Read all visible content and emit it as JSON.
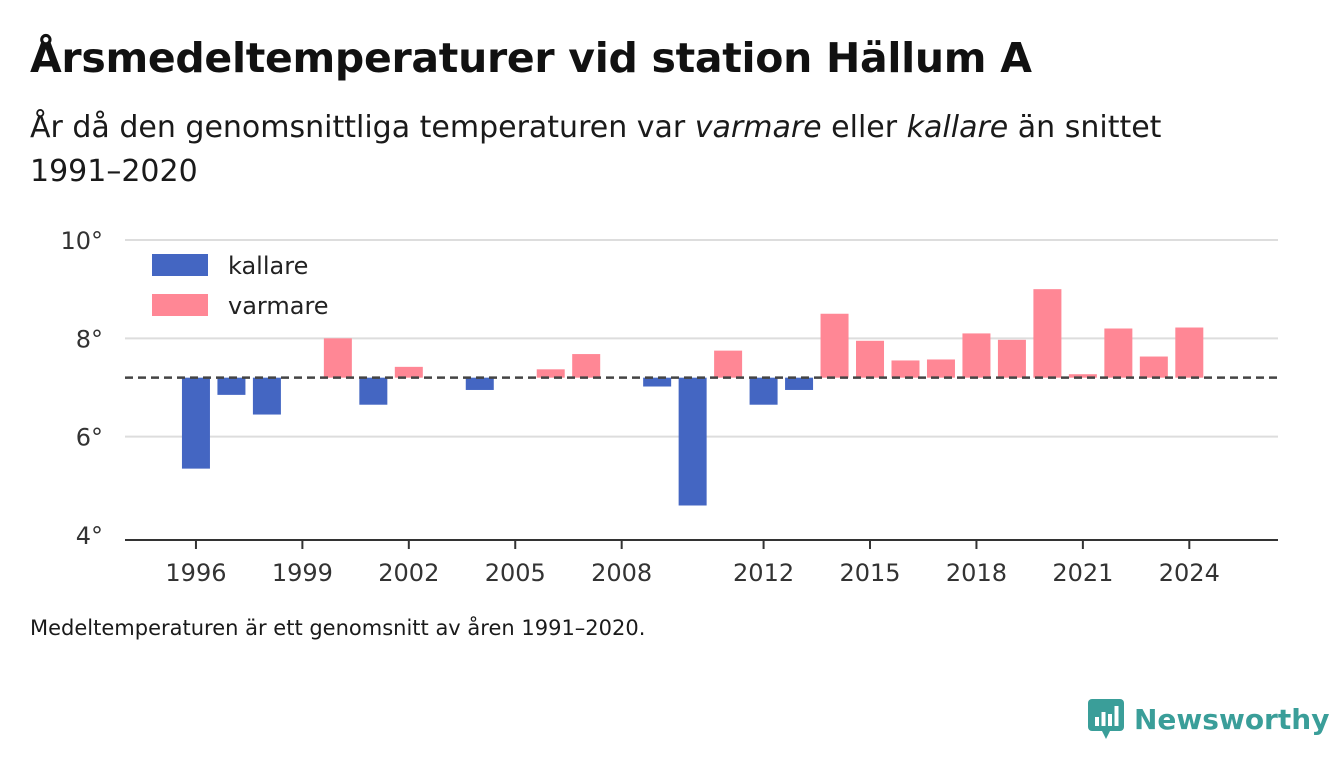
{
  "title": "Årsmedeltemperaturer vid station Hällum A",
  "subtitle": {
    "before": "År då den genomsnittliga temperaturen var ",
    "warm": "varmare",
    "middle": " eller ",
    "cold": "kallare",
    "after": " än snittet 1991–2020"
  },
  "note": "Medeltemperaturen är ett genomsnitt av åren 1991–2020.",
  "brand": {
    "name": "Newsworthy",
    "icon": "newsworthy-logo-icon",
    "color": "#3a9e99"
  },
  "colors": {
    "cold": "#4466c2",
    "warm": "#ff8795",
    "grid": "#dddddd",
    "axis": "#333333",
    "reference": "#444444"
  },
  "chart_data": {
    "type": "bar",
    "baseline": 7.2,
    "ylim": [
      4,
      10
    ],
    "yticks": [
      4,
      6,
      8,
      10
    ],
    "ytick_suffix": "°",
    "xlim": [
      1994,
      2026.5
    ],
    "xticks": [
      1996,
      1999,
      2002,
      2005,
      2008,
      2012,
      2015,
      2018,
      2021,
      2024
    ],
    "grid": true,
    "legend": {
      "placement": "top-left",
      "items": [
        {
          "key": "cold",
          "label": "kallare"
        },
        {
          "key": "warm",
          "label": "varmare"
        }
      ]
    },
    "years": [
      1996,
      1997,
      1998,
      2000,
      2001,
      2002,
      2004,
      2006,
      2007,
      2009,
      2010,
      2011,
      2012,
      2013,
      2014,
      2015,
      2016,
      2017,
      2018,
      2019,
      2020,
      2021,
      2022,
      2023,
      2024
    ],
    "values": [
      5.35,
      6.85,
      6.45,
      8.0,
      6.65,
      7.42,
      6.95,
      7.37,
      7.68,
      7.02,
      4.6,
      7.75,
      6.65,
      6.95,
      8.5,
      7.95,
      7.55,
      7.57,
      8.1,
      7.97,
      9.0,
      7.27,
      8.2,
      7.63,
      8.22
    ],
    "title": "",
    "xlabel": "",
    "ylabel": ""
  }
}
